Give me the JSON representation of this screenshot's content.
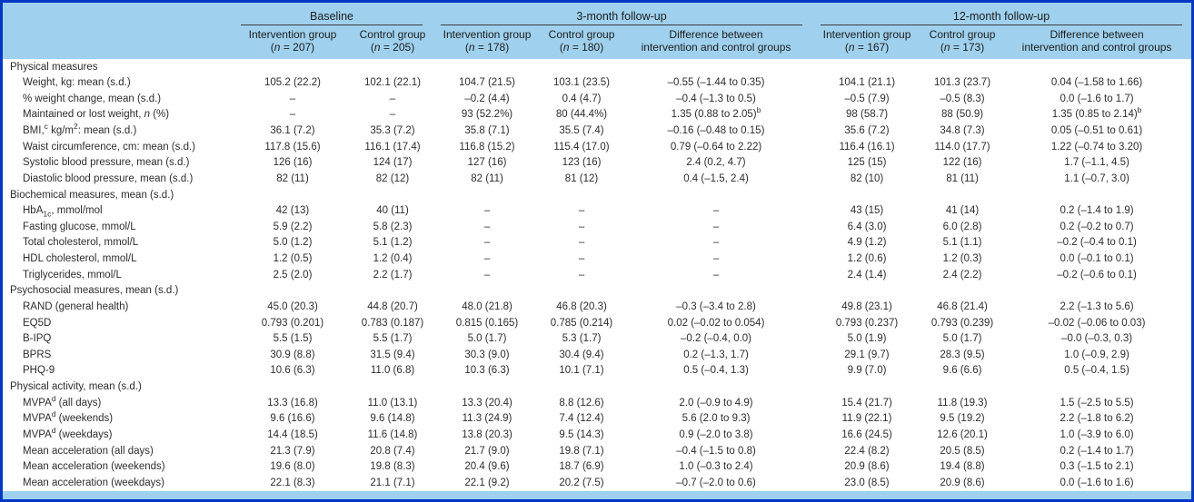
{
  "colors": {
    "frame_border": "#0636c4",
    "header_bg": "#9fd1ee",
    "body_text": "#2d2d2d",
    "rule": "#3c3c3c"
  },
  "header": {
    "groups": [
      "Baseline",
      "3-month follow-up",
      "12-month follow-up"
    ],
    "cols": [
      {
        "title": "Intervention group",
        "line2": "(<i>n</i> = 207)"
      },
      {
        "title": "Control group",
        "line2": "(<i>n</i> = 205)"
      },
      {
        "title": "Intervention group",
        "line2": "(<i>n</i> = 178)"
      },
      {
        "title": "Control group",
        "line2": "(<i>n</i> = 180)"
      },
      {
        "title": "Difference between",
        "line2": "intervention and control groups"
      },
      {
        "title": "Intervention group",
        "line2": "(<i>n</i> = 167)"
      },
      {
        "title": "Control group",
        "line2": "(<i>n</i> = 173)"
      },
      {
        "title": "Difference between",
        "line2": "intervention and control groups"
      }
    ]
  },
  "table": {
    "rows": [
      {
        "section": true,
        "label": "Physical measures",
        "cells": []
      },
      {
        "section": false,
        "label": "Weight, kg: mean (s.d.)",
        "cells": [
          "105.2 (22.2)",
          "102.1 (22.1)",
          "104.7 (21.5)",
          "103.1 (23.5)",
          "–0.55 (–1.44 to 0.35)",
          "104.1 (21.1)",
          "101.3 (23.7)",
          "0.04 (–1.58 to 1.66)"
        ]
      },
      {
        "section": false,
        "label": "% weight change, mean (s.d.)",
        "cells": [
          "–",
          "–",
          "–0.2 (4.4)",
          "0.4 (4.7)",
          "–0.4 (–1.3 to 0.5)",
          "–0.5 (7.9)",
          "–0.5 (8.3)",
          "0.0 (–1.6 to 1.7)"
        ]
      },
      {
        "section": false,
        "label": "Maintained or lost weight, <i>n</i> (%)",
        "cells": [
          "–",
          "–",
          "93 (52.2%)",
          "80 (44.4%)",
          "1.35 (0.88 to 2.05)<sup>b</sup>",
          "98 (58.7)",
          "88 (50.9)",
          "1.35 (0.85 to 2.14)<sup>b</sup>"
        ]
      },
      {
        "section": false,
        "label": "BMI,<sup>c</sup> kg/m<sup>2</sup>: mean (s.d.)",
        "cells": [
          "36.1 (7.2)",
          "35.3 (7.2)",
          "35.8 (7.1)",
          "35.5 (7.4)",
          "–0.16 (–0.48 to 0.15)",
          "35.6 (7.2)",
          "34.8 (7.3)",
          "0.05 (–0.51 to 0.61)"
        ]
      },
      {
        "section": false,
        "label": "Waist circumference, cm: mean (s.d.)",
        "cells": [
          "117.8 (15.6)",
          "116.1 (17.4)",
          "116.8 (15.2)",
          "115.4 (17.0)",
          "0.79 (–0.64 to 2.22)",
          "116.4 (16.1)",
          "114.0 (17.7)",
          "1.22 (–0.74 to 3.20)"
        ]
      },
      {
        "section": false,
        "label": "Systolic blood pressure, mean (s.d.)",
        "cells": [
          "126 (16)",
          "124 (17)",
          "127 (16)",
          "123 (16)",
          "2.4 (0.2, 4.7)",
          "125 (15)",
          "122 (16)",
          "1.7 (–1.1, 4.5)"
        ]
      },
      {
        "section": false,
        "label": "Diastolic blood pressure, mean (s.d.)",
        "cells": [
          "82 (11)",
          "82 (12)",
          "82 (11)",
          "81 (12)",
          "0.4 (–1.5, 2.4)",
          "82 (10)",
          "81 (11)",
          "1.1 (–0.7, 3.0)"
        ]
      },
      {
        "section": true,
        "label": "Biochemical measures, mean (s.d.)",
        "cells": []
      },
      {
        "section": false,
        "label": "HbA<sub>1c</sub>, mmol/mol",
        "cells": [
          "42 (13)",
          "40 (11)",
          "–",
          "–",
          "–",
          "43 (15)",
          "41 (14)",
          "0.2 (–1.4 to 1.9)"
        ]
      },
      {
        "section": false,
        "label": "Fasting glucose, mmol/L",
        "cells": [
          "5.9 (2.2)",
          "5.8 (2.3)",
          "–",
          "–",
          "–",
          "6.4 (3.0)",
          "6.0 (2.8)",
          "0.2 (–0.2 to 0.7)"
        ]
      },
      {
        "section": false,
        "label": "Total cholesterol, mmol/L",
        "cells": [
          "5.0 (1.2)",
          "5.1 (1.2)",
          "–",
          "–",
          "–",
          "4.9 (1.2)",
          "5.1 (1.1)",
          "–0.2 (–0.4 to 0.1)"
        ]
      },
      {
        "section": false,
        "label": "HDL cholesterol, mmol/L",
        "cells": [
          "1.2 (0.5)",
          "1.2 (0.4)",
          "–",
          "–",
          "–",
          "1.2 (0.6)",
          "1.2 (0.3)",
          "0.0 (–0.1 to 0.1)"
        ]
      },
      {
        "section": false,
        "label": "Triglycerides, mmol/L",
        "cells": [
          "2.5 (2.0)",
          "2.2 (1.7)",
          "–",
          "–",
          "–",
          "2.4 (1.4)",
          "2.4 (2.2)",
          "–0.2 (–0.6 to 0.1)"
        ]
      },
      {
        "section": true,
        "label": "Psychosocial measures, mean (s.d.)",
        "cells": []
      },
      {
        "section": false,
        "label": "RAND (general health)",
        "cells": [
          "45.0 (20.3)",
          "44.8 (20.7)",
          "48.0 (21.8)",
          "46.8 (20.3)",
          "–0.3 (–3.4 to 2.8)",
          "49.8 (23.1)",
          "46.8 (21.4)",
          "2.2 (–1.3 to 5.6)"
        ]
      },
      {
        "section": false,
        "label": "EQ5D",
        "cells": [
          "0.793 (0.201)",
          "0.783 (0.187)",
          "0.815 (0.165)",
          "0.785 (0.214)",
          "0.02 (–0.02 to 0.054)",
          "0.793 (0.237)",
          "0.793 (0.239)",
          "–0.02 (–0.06 to 0.03)"
        ]
      },
      {
        "section": false,
        "label": "B-IPQ",
        "cells": [
          "5.5 (1.5)",
          "5.5 (1.7)",
          "5.0 (1.7)",
          "5.3 (1.7)",
          "–0.2 (–0.4, 0.0)",
          "5.0 (1.9)",
          "5.0 (1.7)",
          "–0.0 (–0.3, 0.3)"
        ]
      },
      {
        "section": false,
        "label": "BPRS",
        "cells": [
          "30.9 (8.8)",
          "31.5 (9.4)",
          "30.3 (9.0)",
          "30.4 (9.4)",
          "0.2 (–1.3, 1.7)",
          "29.1 (9.7)",
          "28.3 (9.5)",
          "1.0 (–0.9, 2.9)"
        ]
      },
      {
        "section": false,
        "label": "PHQ-9",
        "cells": [
          "10.6 (6.3)",
          "11.0 (6.8)",
          "10.3 (6.3)",
          "10.1 (7.1)",
          "0.5 (–0.4, 1.3)",
          "9.9 (7.0)",
          "9.6 (6.6)",
          "0.5 (–0.4, 1.5)"
        ]
      },
      {
        "section": true,
        "label": "Physical activity, mean (s.d.)",
        "cells": []
      },
      {
        "section": false,
        "label": "MVPA<sup>d</sup> (all days)",
        "cells": [
          "13.3 (16.8)",
          "11.0 (13.1)",
          "13.3 (20.4)",
          "8.8 (12.6)",
          "2.0 (–0.9 to 4.9)",
          "15.4 (21.7)",
          "11.8 (19.3)",
          "1.5 (–2.5 to 5.5)"
        ]
      },
      {
        "section": false,
        "label": "MVPA<sup>d</sup> (weekends)",
        "cells": [
          "9.6 (16.6)",
          "9.6 (14.8)",
          "11.3 (24.9)",
          "7.4 (12.4)",
          "5.6 (2.0 to 9.3)",
          "11.9 (22.1)",
          "9.5 (19.2)",
          "2.2 (–1.8 to 6.2)"
        ]
      },
      {
        "section": false,
        "label": "MVPA<sup>d</sup> (weekdays)",
        "cells": [
          "14.4 (18.5)",
          "11.6 (14.8)",
          "13.8 (20.3)",
          "9.5 (14.3)",
          "0.9 (–2.0 to 3.8)",
          "16.6 (24.5)",
          "12.6 (20.1)",
          "1.0 (–3.9 to 6.0)"
        ]
      },
      {
        "section": false,
        "label": "Mean acceleration (all days)",
        "cells": [
          "21.3 (7.9)",
          "20.8 (7.4)",
          "21.7 (9.0)",
          "19.8 (7.1)",
          "–0.4 (–1.5 to 0.8)",
          "22.4 (8.2)",
          "20.5 (8.5)",
          "0.2 (–1.4 to 1.7)"
        ]
      },
      {
        "section": false,
        "label": "Mean acceleration (weekends)",
        "cells": [
          "19.6 (8.0)",
          "19.8 (8.3)",
          "20.4 (9.6)",
          "18.7 (6.9)",
          "1.0 (–0.3 to 2.4)",
          "20.9 (8.6)",
          "19.4 (8.8)",
          "0.3 (–1.5 to 2.1)"
        ]
      },
      {
        "section": false,
        "label": "Mean acceleration (weekdays)",
        "cells": [
          "22.1 (8.3)",
          "21.1 (7.1)",
          "22.1 (9.2)",
          "20.2 (7.5)",
          "–0.7 (–2.0 to 0.6)",
          "23.0 (8.5)",
          "20.9 (8.6)",
          "0.0 (–1.6 to 1.6)"
        ]
      }
    ]
  }
}
